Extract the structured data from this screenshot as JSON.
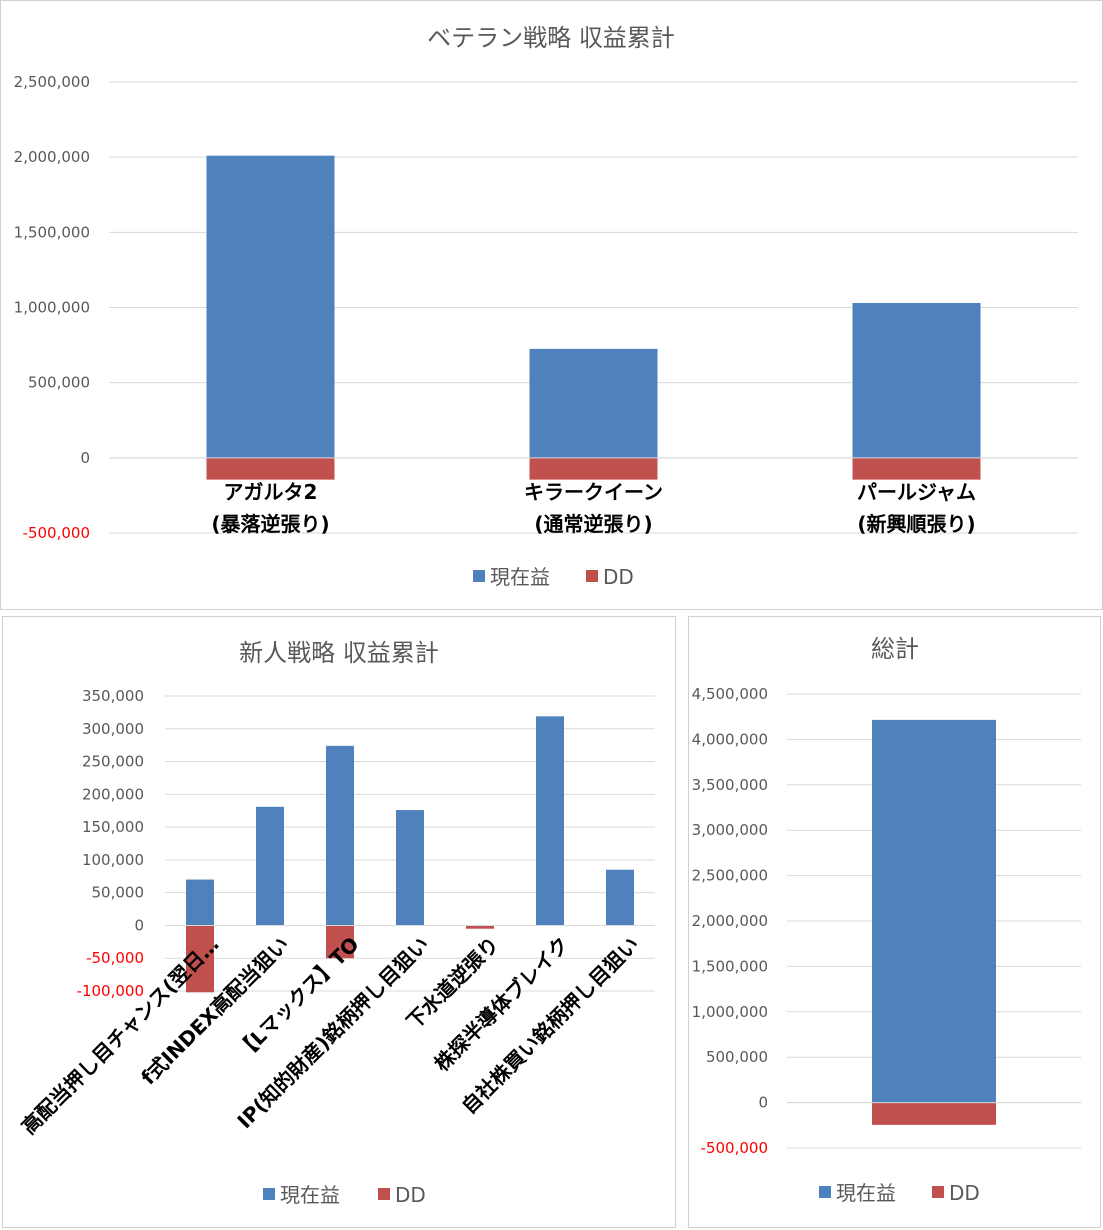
{
  "colors": {
    "profit": "#4f81bd",
    "dd": "#c0504d",
    "negative_tick": "#ff0000"
  },
  "chart_data": [
    {
      "type": "bar",
      "title": "ベテラン戦略 収益累計",
      "categories": [
        [
          "アガルタ2",
          "(暴落逆張り)"
        ],
        [
          "キラークイーン",
          "(通常逆張り)"
        ],
        [
          "パールジャム",
          "(新興順張り)"
        ]
      ],
      "series": [
        {
          "name": "現在益",
          "values": [
            2010000,
            725000,
            1030000
          ]
        },
        {
          "name": "DD",
          "values": [
            -145000,
            -145000,
            -145000
          ]
        }
      ],
      "ylim": [
        -500000,
        2500000
      ],
      "yticks": [
        -500000,
        0,
        500000,
        1000000,
        1500000,
        2000000,
        2500000
      ],
      "ytick_labels": [
        "-500,000",
        "0",
        "500,000",
        "1,000,000",
        "1,500,000",
        "2,000,000",
        "2,500,000"
      ],
      "grid": true,
      "legend": "bottom"
    },
    {
      "type": "bar",
      "title": "新人戦略 収益累計",
      "categories": [
        "高配当押し目チャンス(翌日…",
        "f式INDEX高配当狙い",
        "【Lマックス】TO",
        "IP(知的財産)銘柄押し目狙い",
        "下水道逆張り",
        "株探半導体ブレイク",
        "自社株買い銘柄押し目狙い"
      ],
      "series": [
        {
          "name": "現在益",
          "values": [
            70000,
            181000,
            274000,
            176000,
            0,
            319000,
            85000
          ]
        },
        {
          "name": "DD",
          "values": [
            -102000,
            0,
            -50000,
            0,
            -5000,
            0,
            0
          ]
        }
      ],
      "ylim": [
        -100000,
        350000
      ],
      "yticks": [
        -100000,
        -50000,
        0,
        50000,
        100000,
        150000,
        200000,
        250000,
        300000,
        350000
      ],
      "ytick_labels": [
        "-100,000",
        "-50,000",
        "0",
        "50,000",
        "100,000",
        "150,000",
        "200,000",
        "250,000",
        "300,000",
        "350,000"
      ],
      "grid": true,
      "legend": "bottom"
    },
    {
      "type": "bar",
      "title": "総計",
      "categories": [
        ""
      ],
      "series": [
        {
          "name": "現在益",
          "values": [
            4215000
          ]
        },
        {
          "name": "DD",
          "values": [
            -245000
          ]
        }
      ],
      "ylim": [
        -500000,
        4500000
      ],
      "yticks": [
        -500000,
        0,
        500000,
        1000000,
        1500000,
        2000000,
        2500000,
        3000000,
        3500000,
        4000000,
        4500000
      ],
      "ytick_labels": [
        "-500,000",
        "0",
        "500,000",
        "1,000,000",
        "1,500,000",
        "2,000,000",
        "2,500,000",
        "3,000,000",
        "3,500,000",
        "4,000,000",
        "4,500,000"
      ],
      "grid": true,
      "legend": "bottom"
    }
  ]
}
